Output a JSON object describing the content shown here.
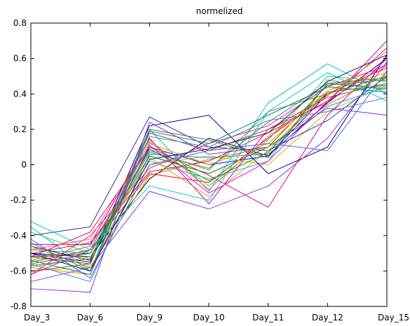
{
  "chart_data": {
    "type": "line",
    "title": "normelized",
    "xlabel": "",
    "ylabel": "",
    "categories": [
      "Day_3",
      "Day_6",
      "Day_9",
      "Day_10",
      "Day_11",
      "Day_12",
      "Day_15"
    ],
    "ylim": [
      -0.8,
      0.8
    ],
    "yticks": [
      -0.8,
      -0.6,
      -0.4,
      -0.2,
      0,
      0.2,
      0.4,
      0.6,
      0.8
    ],
    "ytick_labels": [
      "-0.8",
      "-0.6",
      "-0.4",
      "-0.2",
      "0",
      "0.2",
      "0.4",
      "0.6",
      "0.8"
    ],
    "grid": false,
    "legend": "none",
    "series": [
      {
        "color": "#0000ff",
        "values": [
          -0.5,
          -0.55,
          0.1,
          0.0,
          0.05,
          0.4,
          0.5
        ]
      },
      {
        "color": "#008000",
        "values": [
          -0.52,
          -0.5,
          0.05,
          -0.05,
          0.1,
          0.45,
          0.48
        ]
      },
      {
        "color": "#ff0000",
        "values": [
          -0.55,
          -0.48,
          -0.05,
          -0.1,
          0.15,
          0.4,
          0.55
        ]
      },
      {
        "color": "#00bfbf",
        "values": [
          -0.35,
          -0.6,
          0.2,
          -0.15,
          0.35,
          0.57,
          0.4
        ]
      },
      {
        "color": "#bf00bf",
        "values": [
          -0.45,
          -0.45,
          0.15,
          -0.22,
          0.2,
          0.35,
          0.7
        ]
      },
      {
        "color": "#bfbf00",
        "values": [
          -0.6,
          -0.58,
          0.0,
          0.05,
          0.0,
          0.3,
          0.45
        ]
      },
      {
        "color": "#000000",
        "values": [
          -0.5,
          -0.52,
          -0.08,
          0.15,
          0.05,
          0.35,
          0.6
        ]
      },
      {
        "color": "#3030a0",
        "values": [
          -0.4,
          -0.35,
          0.27,
          0.1,
          0.08,
          0.25,
          0.5
        ]
      },
      {
        "color": "#ff8c00",
        "values": [
          -0.58,
          -0.62,
          0.12,
          0.0,
          0.12,
          0.42,
          0.52
        ]
      },
      {
        "color": "#8b4513",
        "values": [
          -0.52,
          -0.56,
          0.18,
          0.08,
          0.2,
          0.38,
          0.46
        ]
      },
      {
        "color": "#20b2aa",
        "values": [
          -0.48,
          -0.5,
          0.02,
          -0.08,
          0.02,
          0.48,
          0.42
        ]
      },
      {
        "color": "#ff1493",
        "values": [
          -0.62,
          -0.4,
          -0.02,
          0.12,
          0.22,
          0.44,
          0.56
        ]
      },
      {
        "color": "#00008b",
        "values": [
          -0.46,
          -0.54,
          0.22,
          0.28,
          -0.05,
          0.1,
          0.62
        ]
      },
      {
        "color": "#6b8e23",
        "values": [
          -0.54,
          -0.46,
          0.08,
          -0.03,
          0.3,
          0.4,
          0.5
        ]
      },
      {
        "color": "#9932cc",
        "values": [
          -0.66,
          -0.58,
          -0.15,
          -0.25,
          -0.12,
          0.15,
          0.58
        ]
      },
      {
        "color": "#1e90ff",
        "values": [
          -0.56,
          -0.66,
          0.06,
          0.04,
          0.06,
          0.33,
          0.44
        ]
      },
      {
        "color": "#32cd32",
        "values": [
          -0.38,
          -0.5,
          0.13,
          -0.12,
          0.14,
          0.5,
          0.47
        ]
      },
      {
        "color": "#dc143c",
        "values": [
          -0.5,
          -0.44,
          -0.04,
          0.02,
          0.18,
          0.36,
          0.66
        ]
      },
      {
        "color": "#4682b4",
        "values": [
          -0.44,
          -0.6,
          0.16,
          0.1,
          0.25,
          0.3,
          0.38
        ]
      },
      {
        "color": "#daa520",
        "values": [
          -0.58,
          -0.52,
          0.04,
          -0.18,
          0.08,
          0.42,
          0.54
        ]
      },
      {
        "color": "#00ced1",
        "values": [
          -0.32,
          -0.48,
          -0.12,
          -0.2,
          0.3,
          0.52,
          0.36
        ]
      },
      {
        "color": "#c71585",
        "values": [
          -0.52,
          -0.38,
          0.1,
          -0.06,
          -0.24,
          0.28,
          0.6
        ]
      },
      {
        "color": "#556b2f",
        "values": [
          -0.6,
          -0.56,
          0.2,
          0.14,
          0.04,
          0.46,
          0.49
        ]
      },
      {
        "color": "#4169e1",
        "values": [
          -0.42,
          -0.64,
          0.0,
          0.08,
          0.12,
          0.08,
          0.53
        ]
      },
      {
        "color": "#ff6347",
        "values": [
          -0.48,
          -0.42,
          0.14,
          -0.14,
          0.16,
          0.39,
          0.64
        ]
      },
      {
        "color": "#2e8b57",
        "values": [
          -0.56,
          -0.5,
          0.07,
          -0.02,
          0.24,
          0.46,
          0.43
        ]
      },
      {
        "color": "#8a2be2",
        "values": [
          -0.7,
          -0.72,
          0.24,
          0.06,
          0.1,
          0.32,
          0.28
        ]
      },
      {
        "color": "#b8860b",
        "values": [
          -0.46,
          -0.58,
          -0.06,
          0.03,
          0.1,
          0.34,
          0.51
        ]
      },
      {
        "color": "#008b8b",
        "values": [
          -0.54,
          -0.62,
          0.19,
          0.12,
          0.28,
          0.44,
          0.41
        ]
      },
      {
        "color": "#ff00ff",
        "values": [
          -0.62,
          -0.48,
          0.11,
          -0.16,
          0.02,
          0.36,
          0.57
        ]
      },
      {
        "color": "#191970",
        "values": [
          -0.5,
          -0.6,
          0.03,
          0.09,
          0.18,
          0.47,
          0.62
        ]
      },
      {
        "color": "#228b22",
        "values": [
          -0.57,
          -0.53,
          0.09,
          -0.09,
          0.07,
          0.41,
          0.45
        ]
      }
    ]
  }
}
